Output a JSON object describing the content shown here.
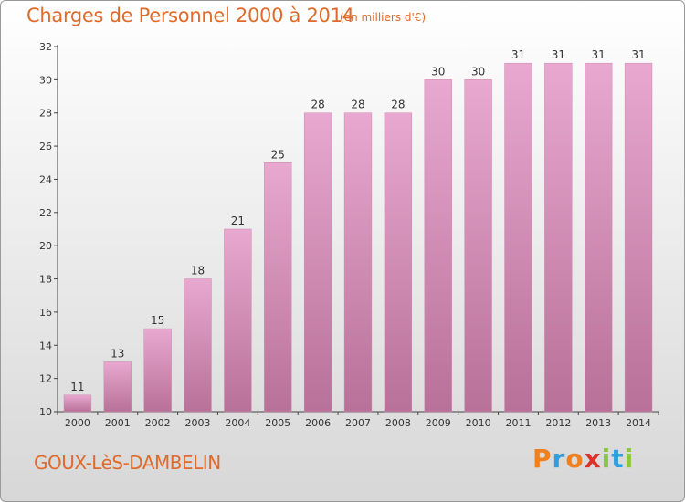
{
  "header": {
    "title": "Charges de Personnel 2000 à 2014",
    "unit": "(en milliers d'€)"
  },
  "footer": {
    "commune": "GOUX-LèS-DAMBELIN",
    "brand": "Proxiti",
    "brand_colors": [
      "#f07f1e",
      "#2f9fe0",
      "#f07f1e",
      "#e0302a",
      "#8cc63f",
      "#2f9fe0",
      "#8cc63f"
    ]
  },
  "colors": {
    "bar_top": "#e8a8d0",
    "bar_bottom": "#b87198",
    "accent": "#e06a2a"
  },
  "chart_data": {
    "type": "bar",
    "title": "Charges de Personnel 2000 à 2014",
    "subtitle": "(en milliers d'€)",
    "categories": [
      "2000",
      "2001",
      "2002",
      "2003",
      "2004",
      "2005",
      "2006",
      "2007",
      "2008",
      "2009",
      "2010",
      "2011",
      "2012",
      "2013",
      "2014"
    ],
    "values": [
      11,
      13,
      15,
      18,
      21,
      25,
      28,
      28,
      28,
      30,
      30,
      31,
      31,
      31,
      31
    ],
    "xlabel": "",
    "ylabel": "",
    "ylim": [
      10,
      32
    ],
    "yticks": [
      10,
      12,
      14,
      16,
      18,
      20,
      22,
      24,
      26,
      28,
      30,
      32
    ],
    "grid": false
  }
}
